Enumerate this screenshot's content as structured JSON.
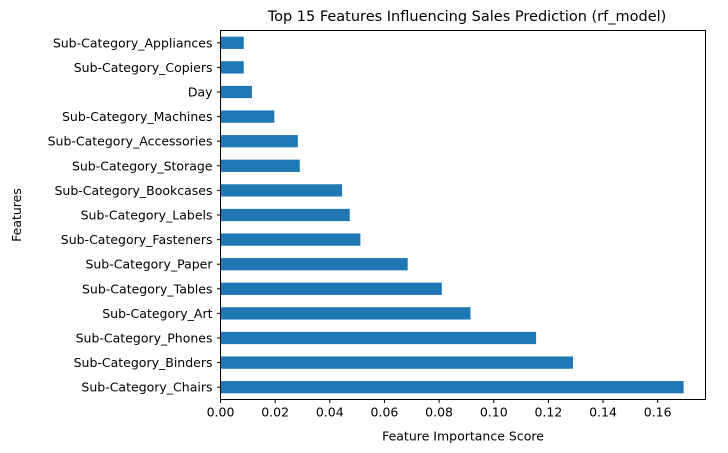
{
  "chart_data": {
    "type": "bar",
    "orientation": "horizontal",
    "title": "Top 15 Features Influencing Sales Prediction (rf_model)",
    "xlabel": "Feature Importance Score",
    "ylabel": "Features",
    "categories": [
      "Sub-Category_Appliances",
      "Sub-Category_Copiers",
      "Day",
      "Sub-Category_Machines",
      "Sub-Category_Accessories",
      "Sub-Category_Storage",
      "Sub-Category_Bookcases",
      "Sub-Category_Labels",
      "Sub-Category_Fasteners",
      "Sub-Category_Paper",
      "Sub-Category_Tables",
      "Sub-Category_Art",
      "Sub-Category_Phones",
      "Sub-Category_Binders",
      "Sub-Category_Chairs"
    ],
    "values": [
      0.0085,
      0.0085,
      0.0115,
      0.0197,
      0.0283,
      0.029,
      0.0445,
      0.0473,
      0.0512,
      0.0685,
      0.081,
      0.0915,
      0.1155,
      0.129,
      0.1695
    ],
    "xlim": [
      0,
      0.1775
    ],
    "xticks": [
      0.0,
      0.02,
      0.04,
      0.06,
      0.08,
      0.1,
      0.12,
      0.14,
      0.16
    ],
    "xtick_labels": [
      "0.00",
      "0.02",
      "0.04",
      "0.06",
      "0.08",
      "0.10",
      "0.12",
      "0.14",
      "0.16"
    ],
    "grid": false,
    "legend": "none",
    "bar_color": "#1f77b4"
  }
}
